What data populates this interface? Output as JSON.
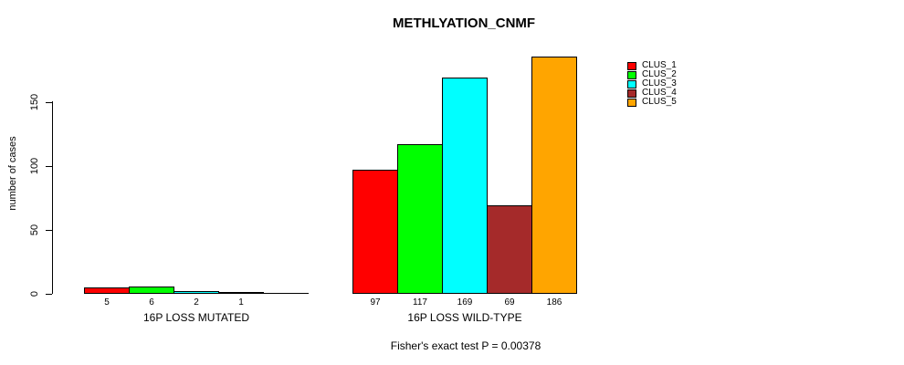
{
  "chart_data": {
    "type": "bar",
    "title": "METHLYATION_CNMF",
    "subtitle": "Fisher's exact test P = 0.00378",
    "ylabel": "number of cases",
    "xlabel": "",
    "yticks": [
      0,
      50,
      100,
      150
    ],
    "ylim": [
      0,
      186
    ],
    "grid": false,
    "legend_position": "right",
    "series": [
      {
        "name": "CLUS_1",
        "color": "#ff0000"
      },
      {
        "name": "CLUS_2",
        "color": "#00ff00"
      },
      {
        "name": "CLUS_3",
        "color": "#00ffff"
      },
      {
        "name": "CLUS_4",
        "color": "#a52a2a"
      },
      {
        "name": "CLUS_5",
        "color": "#ffa500"
      }
    ],
    "groups": [
      {
        "label": "16P LOSS MUTATED",
        "values": [
          5,
          6,
          2,
          1,
          0
        ],
        "bar_labels": [
          "5",
          "6",
          "2",
          "1",
          ""
        ]
      },
      {
        "label": "16P LOSS WILD-TYPE",
        "values": [
          97,
          117,
          169,
          69,
          186
        ],
        "bar_labels": [
          "97",
          "117",
          "169",
          "69",
          "186"
        ]
      }
    ]
  }
}
